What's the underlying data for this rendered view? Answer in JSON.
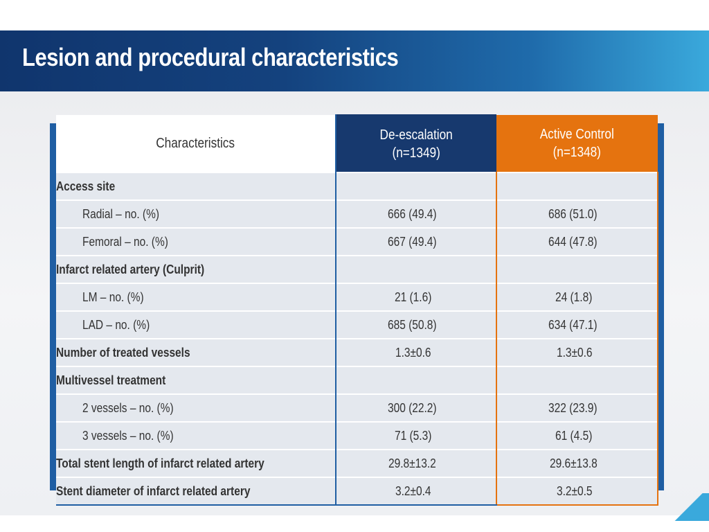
{
  "slide": {
    "title": "Lesion and procedural characteristics"
  },
  "table": {
    "headers": {
      "characteristics": "Characteristics",
      "group1_name": "De-escalation",
      "group1_n": "(n=1349)",
      "group2_name": "Active Control",
      "group2_n": "(n=1348)"
    },
    "rows": [
      {
        "label": "Access site",
        "de": "",
        "ac": ""
      },
      {
        "label": "Radial – no. (%)",
        "de": "666 (49.4)",
        "ac": "686 (51.0)"
      },
      {
        "label": "Femoral – no. (%)",
        "de": "667 (49.4)",
        "ac": "644 (47.8)"
      },
      {
        "label": "Infarct related artery (Culprit)",
        "de": "",
        "ac": ""
      },
      {
        "label": "LM – no. (%)",
        "de": "21 (1.6)",
        "ac": "24 (1.8)"
      },
      {
        "label": "LAD – no. (%)",
        "de": "685 (50.8)",
        "ac": "634 (47.1)"
      },
      {
        "label": "Number of treated vessels",
        "de": "1.3±0.6",
        "ac": "1.3±0.6"
      },
      {
        "label": "Multivessel treatment",
        "de": "",
        "ac": ""
      },
      {
        "label": "2 vessels – no. (%)",
        "de": "300 (22.2)",
        "ac": "322 (23.9)"
      },
      {
        "label": "3 vessels – no. (%)",
        "de": "71 (5.3)",
        "ac": "61 (4.5)"
      },
      {
        "label": "Total stent length of infarct related artery",
        "de": "29.8±13.2",
        "ac": "29.6±13.8"
      },
      {
        "label": "Stent diameter of infarct related artery",
        "de": "3.2±0.4",
        "ac": "3.2±0.5"
      }
    ]
  },
  "colors": {
    "title_bar_dark": "#10356d",
    "title_bar_light": "#3aa9dc",
    "de_escalation_header": "#17396e",
    "active_control_header": "#e5730f",
    "row_background": "#e4e8ee"
  }
}
